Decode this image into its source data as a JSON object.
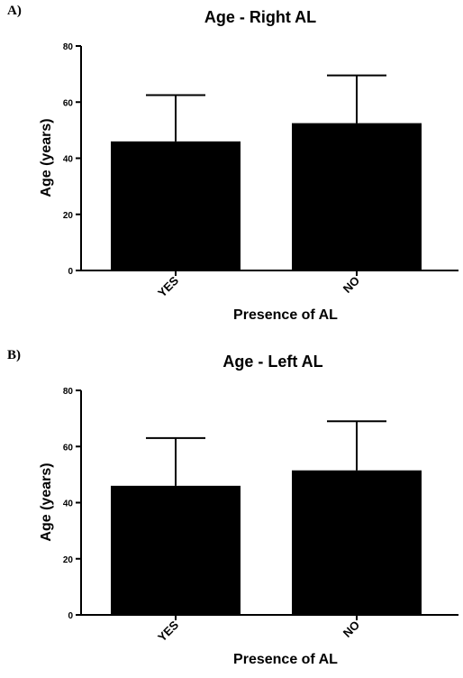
{
  "chart_data": [
    {
      "type": "bar",
      "panel_label": "A)",
      "title": "Age - Right AL",
      "xlabel": "Presence of AL",
      "ylabel": "Age (years)",
      "categories": [
        "YES",
        "NO"
      ],
      "values": [
        46,
        52.5
      ],
      "error_upper": [
        62.5,
        69.5
      ],
      "ylim": [
        0,
        80
      ],
      "yticks": [
        "0",
        "20",
        "40",
        "60",
        "80"
      ],
      "colors": {
        "bar": "#000000",
        "axis": "#000000"
      },
      "grid": false,
      "legend": "none"
    },
    {
      "type": "bar",
      "panel_label": "B)",
      "title": "Age - Left AL",
      "xlabel": "Presence of AL",
      "ylabel": "Age (years)",
      "categories": [
        "YES",
        "NO"
      ],
      "values": [
        46,
        51.5
      ],
      "error_upper": [
        63,
        69
      ],
      "ylim": [
        0,
        80
      ],
      "yticks": [
        "0",
        "20",
        "40",
        "60",
        "80"
      ],
      "colors": {
        "bar": "#000000",
        "axis": "#000000"
      },
      "grid": false,
      "legend": "none"
    }
  ]
}
